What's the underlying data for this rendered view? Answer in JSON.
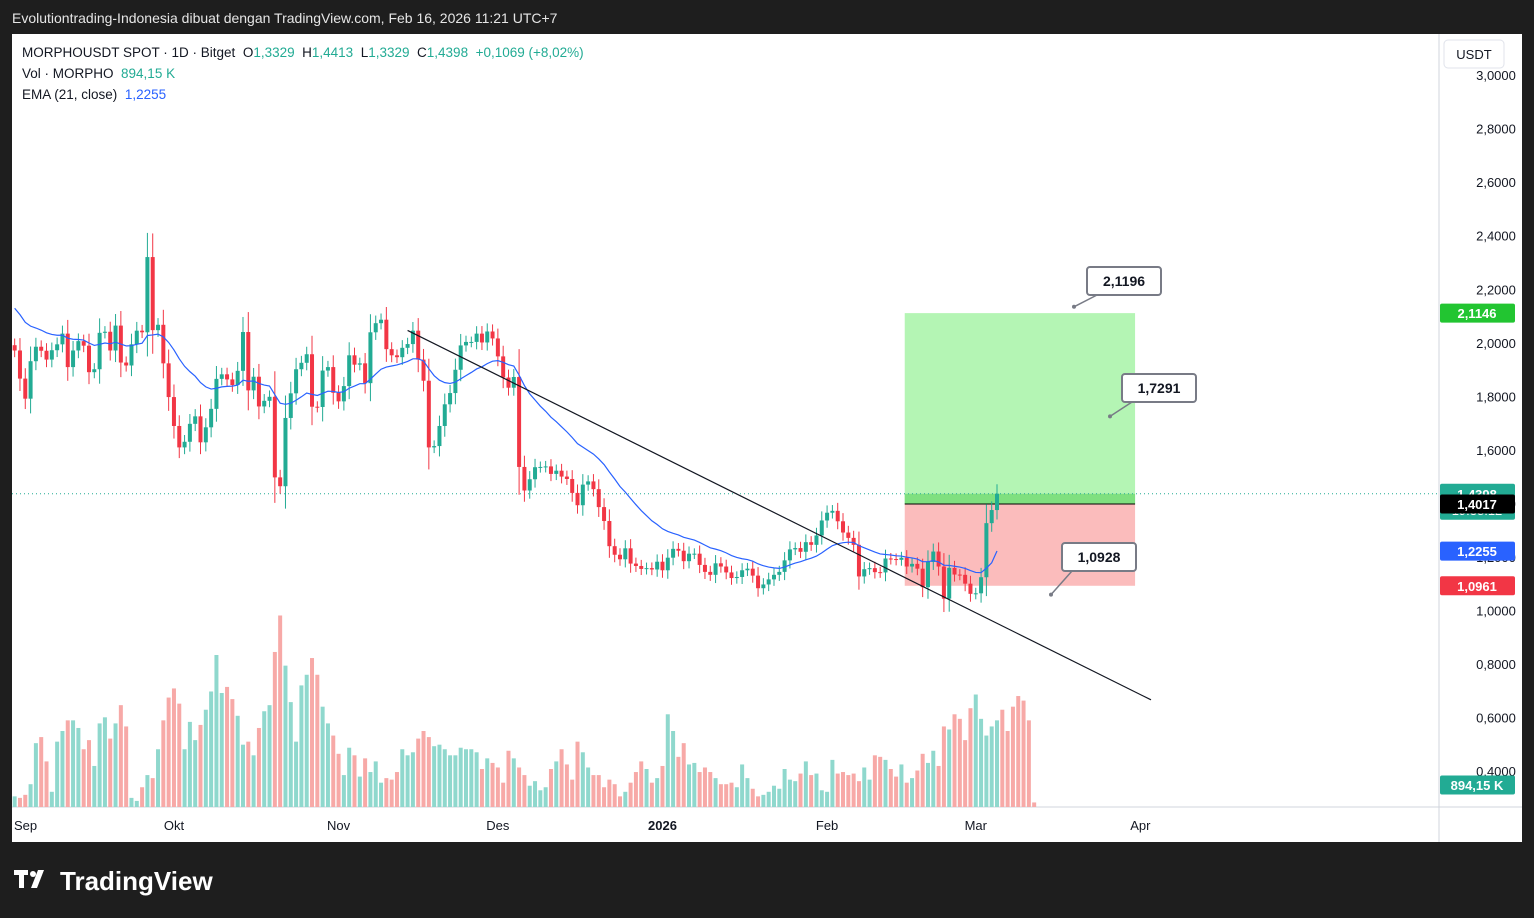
{
  "header": {
    "caption": "Evolutiontrading-Indonesia dibuat dengan TradingView.com, Feb 16, 2026 11:21 UTC+7"
  },
  "legend": {
    "symbol": "MORPHOUSDT SPOT · 1D · Bitget",
    "o_label": "O",
    "o_value": "1,3329",
    "h_label": "H",
    "h_value": "1,4413",
    "l_label": "L",
    "l_value": "1,3329",
    "c_label": "C",
    "c_value": "1,4398",
    "change": "+0,1069 (+8,02%)",
    "vol_label": "Vol · MORPHO",
    "vol_value": "894,15 K",
    "ema_label": "EMA (21, close)",
    "ema_value": "1,2255"
  },
  "brand": {
    "name": "TradingView"
  },
  "colors": {
    "up": "#22ab94",
    "down": "#f23645",
    "ema": "#2962ff",
    "profit_zone": "#b4f5b4",
    "loss_zone": "#fbbcbc",
    "target": "#22c531"
  },
  "chart_data": {
    "type": "candlestick",
    "price_scale": {
      "currency": "USDT",
      "ticks": [
        "3,0000",
        "2,8000",
        "2,6000",
        "2,4000",
        "2,2000",
        "2,0000",
        "1,8000",
        "1,6000",
        "1,4000",
        "1,2000",
        "1,0000",
        "0,8000",
        "0,6000",
        "0,4000"
      ],
      "ylim": [
        0.28,
        3.08
      ]
    },
    "time_axis": {
      "labels": [
        "Sep",
        "Okt",
        "Nov",
        "Des",
        "2026",
        "Feb",
        "Mar",
        "Apr"
      ],
      "bold": "2026"
    },
    "price_badges": [
      {
        "value": "2,1146",
        "price": 2.1146,
        "color": "#22c531"
      },
      {
        "value": "1,4398",
        "subtext": "19:38:12",
        "price": 1.4398,
        "color": "#22ab94"
      },
      {
        "value": "1,4017",
        "price": 1.4017,
        "color": "#000000"
      },
      {
        "value": "1,2255",
        "price": 1.2255,
        "color": "#2962ff"
      },
      {
        "value": "1,0961",
        "price": 1.0961,
        "color": "#f23645"
      },
      {
        "value": "894,15 K",
        "price": 0.352,
        "color": "#22ab94"
      }
    ],
    "annotations": [
      {
        "text": "2,1196",
        "price": 2.1196
      },
      {
        "text": "1,7291",
        "price": 1.7291
      },
      {
        "text": "1,0928",
        "price": 1.0928
      }
    ],
    "position": {
      "entry": 1.4017,
      "target": 2.1146,
      "stop": 1.0961,
      "start": "2026-02-16",
      "end": "2026-03-31"
    },
    "trendline": {
      "from": {
        "date": "2025-11-14",
        "price": 2.05
      },
      "to": {
        "date": "2026-04-03",
        "price": 0.67
      }
    },
    "last_price": 1.4398,
    "start_date": "2025-09-01",
    "series": [
      {
        "name": "MORPHOUSDT",
        "close": [
          1.975,
          1.87,
          1.795,
          1.935,
          1.989,
          1.974,
          1.941,
          1.976,
          1.998,
          2.038,
          1.913,
          1.975,
          2.01,
          1.993,
          1.894,
          1.905,
          2.041,
          2.045,
          1.975,
          2.068,
          1.93,
          1.919,
          1.998,
          2.049,
          2.043,
          2.324,
          2.051,
          2.071,
          1.927,
          1.801,
          1.693,
          1.613,
          1.634,
          1.701,
          1.729,
          1.632,
          1.688,
          1.757,
          1.869,
          1.886,
          1.867,
          1.846,
          1.899,
          2.044,
          1.826,
          1.877,
          1.766,
          1.787,
          1.802,
          1.501,
          1.468,
          1.723,
          1.815,
          1.905,
          1.929,
          1.961,
          1.765,
          1.764,
          1.9,
          1.913,
          1.817,
          1.785,
          1.842,
          1.957,
          1.922,
          1.927,
          1.853,
          2.043,
          2.077,
          2.09,
          1.98,
          1.957,
          1.95,
          1.985,
          1.999,
          2.049,
          1.941,
          1.862,
          1.613,
          1.618,
          1.693,
          1.774,
          1.816,
          1.903,
          1.994,
          2.007,
          2.007,
          2.038,
          2.005,
          2.046,
          2.02,
          1.953,
          1.874,
          1.836,
          1.876,
          1.54,
          1.452,
          1.494,
          1.539,
          1.54,
          1.542,
          1.514,
          1.526,
          1.504,
          1.495,
          1.443,
          1.397,
          1.474,
          1.486,
          1.457,
          1.39,
          1.338,
          1.244,
          1.212,
          1.195,
          1.236,
          1.179,
          1.17,
          1.159,
          1.162,
          1.157,
          1.186,
          1.154,
          1.201,
          1.234,
          1.227,
          1.188,
          1.216,
          1.216,
          1.174,
          1.148,
          1.137,
          1.18,
          1.168,
          1.146,
          1.125,
          1.129,
          1.154,
          1.16,
          1.134,
          1.087,
          1.101,
          1.12,
          1.137,
          1.148,
          1.191,
          1.232,
          1.237,
          1.223,
          1.259,
          1.249,
          1.284,
          1.34,
          1.369,
          1.376,
          1.337,
          1.295,
          1.275,
          1.249,
          1.131,
          1.158,
          1.162,
          1.147,
          1.146,
          1.198,
          1.196,
          1.193,
          1.201,
          1.168,
          1.178,
          1.16,
          1.091,
          1.185,
          1.224,
          1.168,
          1.048,
          1.163,
          1.138,
          1.137,
          1.104,
          1.066,
          1.068,
          1.128,
          1.33,
          1.379,
          1.44
        ]
      },
      {
        "name": "EMA (21, close)",
        "values": [
          2.133,
          2.109,
          2.08,
          2.066,
          2.059,
          2.051,
          2.041,
          2.035,
          2.032,
          2.032,
          2.021,
          2.017,
          2.016,
          2.014,
          2.003,
          1.994,
          1.998,
          2.003,
          2.0,
          2.006,
          1.999,
          1.992,
          1.993,
          1.998,
          2.002,
          2.031,
          2.033,
          2.036,
          2.026,
          2.005,
          1.977,
          1.944,
          1.916,
          1.896,
          1.879,
          1.855,
          1.839,
          1.831,
          1.834,
          1.839,
          1.841,
          1.842,
          1.846,
          1.864,
          1.86,
          1.861,
          1.852,
          1.846,
          1.842,
          1.81,
          1.778,
          1.774,
          1.778,
          1.789,
          1.802,
          1.816,
          1.811,
          1.807,
          1.815,
          1.823,
          1.822,
          1.818,
          1.821,
          1.834,
          1.842,
          1.851,
          1.851,
          1.868,
          1.887,
          1.905,
          1.913,
          1.917,
          1.921,
          1.927,
          1.934,
          1.944,
          1.944,
          1.936,
          1.907,
          1.881,
          1.864,
          1.855,
          1.852,
          1.857,
          1.869,
          1.881,
          1.893,
          1.906,
          1.914,
          1.926,
          1.935,
          1.937,
          1.931,
          1.922,
          1.917,
          1.883,
          1.844,
          1.813,
          1.79,
          1.767,
          1.748,
          1.726,
          1.709,
          1.69,
          1.671,
          1.65,
          1.627,
          1.614,
          1.601,
          1.588,
          1.57,
          1.549,
          1.521,
          1.495,
          1.467,
          1.446,
          1.422,
          1.399,
          1.377,
          1.358,
          1.339,
          1.325,
          1.309,
          1.299,
          1.292,
          1.286,
          1.277,
          1.272,
          1.267,
          1.258,
          1.248,
          1.238,
          1.233,
          1.227,
          1.219,
          1.209,
          1.202,
          1.197,
          1.194,
          1.188,
          1.178,
          1.171,
          1.166,
          1.163,
          1.161,
          1.166,
          1.174,
          1.181,
          1.186,
          1.193,
          1.199,
          1.207,
          1.219,
          1.233,
          1.246,
          1.253,
          1.257,
          1.259,
          1.258,
          1.246,
          1.238,
          1.23,
          1.222,
          1.215,
          1.213,
          1.211,
          1.208,
          1.207,
          1.203,
          1.2,
          1.196,
          1.186,
          1.186,
          1.19,
          1.185,
          1.173,
          1.172,
          1.169,
          1.166,
          1.161,
          1.153,
          1.146,
          1.145,
          1.162,
          1.182,
          1.226
        ]
      },
      {
        "name": "Vol · MORPHO",
        "relative": [
          0.07,
          0.06,
          0.08,
          0.15,
          0.42,
          0.46,
          0.3,
          0.1,
          0.43,
          0.5,
          0.57,
          0.57,
          0.52,
          0.38,
          0.44,
          0.27,
          0.55,
          0.59,
          0.45,
          0.55,
          0.67,
          0.53,
          0.06,
          0.04,
          0.13,
          0.21,
          0.19,
          0.38,
          0.57,
          0.72,
          0.78,
          0.68,
          0.38,
          0.56,
          0.44,
          0.54,
          0.64,
          0.76,
          1.0,
          0.75,
          0.79,
          0.71,
          0.6,
          0.41,
          0.43,
          0.34,
          0.52,
          0.63,
          0.67,
          1.02,
          1.26,
          0.93,
          0.69,
          0.43,
          0.8,
          0.87,
          0.98,
          0.87,
          0.66,
          0.55,
          0.47,
          0.35,
          0.21,
          0.39,
          0.34,
          0.2,
          0.32,
          0.23,
          0.3,
          0.16,
          0.19,
          0.18,
          0.23,
          0.38,
          0.34,
          0.36,
          0.45,
          0.5,
          0.46,
          0.4,
          0.41,
          0.38,
          0.34,
          0.34,
          0.39,
          0.38,
          0.38,
          0.36,
          0.25,
          0.32,
          0.29,
          0.26,
          0.16,
          0.37,
          0.32,
          0.26,
          0.21,
          0.14,
          0.17,
          0.11,
          0.13,
          0.25,
          0.3,
          0.38,
          0.28,
          0.18,
          0.43,
          0.36,
          0.26,
          0.21,
          0.21,
          0.13,
          0.18,
          0.15,
          0.07,
          0.1,
          0.16,
          0.23,
          0.3,
          0.25,
          0.16,
          0.19,
          0.27,
          0.61,
          0.5,
          0.33,
          0.42,
          0.28,
          0.29,
          0.23,
          0.26,
          0.23,
          0.19,
          0.15,
          0.15,
          0.16,
          0.13,
          0.28,
          0.19,
          0.12,
          0.07,
          0.08,
          0.1,
          0.14,
          0.12,
          0.25,
          0.18,
          0.17,
          0.22,
          0.3,
          0.21,
          0.22,
          0.11,
          0.1,
          0.31,
          0.22,
          0.23,
          0.21,
          0.22,
          0.17,
          0.26,
          0.18,
          0.34,
          0.33,
          0.31,
          0.25,
          0.2,
          0.28,
          0.16,
          0.19,
          0.24,
          0.35,
          0.29,
          0.37,
          0.27,
          0.53,
          0.51,
          0.61,
          0.58,
          0.44,
          0.65,
          0.74,
          0.58,
          0.47,
          0.53,
          0.57,
          0.64,
          0.5,
          0.66,
          0.73,
          0.7,
          0.57,
          0.03
        ]
      }
    ]
  }
}
